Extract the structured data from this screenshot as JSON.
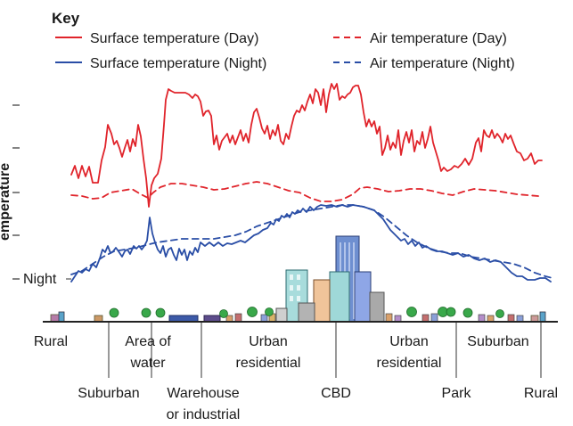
{
  "key": {
    "title": "Key",
    "items": [
      {
        "label": "Surface temperature (Day)",
        "color": "#e0242b",
        "dash": "solid"
      },
      {
        "label": "Air temperature (Day)",
        "color": "#e0242b",
        "dash": "dashed"
      },
      {
        "label": "Surface temperature (Night)",
        "color": "#2a4ea6",
        "dash": "solid"
      },
      {
        "label": "Air temperature (Night)",
        "color": "#2a4ea6",
        "dash": "dashed"
      }
    ]
  },
  "axis": {
    "y_label_partial": "emperature",
    "night_label": "Night"
  },
  "zones_upper": [
    {
      "id": "rural",
      "lines": [
        "Rural"
      ]
    },
    {
      "id": "area-of-water",
      "lines": [
        "Area of",
        "water"
      ]
    },
    {
      "id": "urban-residential-1",
      "lines": [
        "Urban",
        "residential"
      ]
    },
    {
      "id": "urban-residential-2",
      "lines": [
        "Urban",
        "residential"
      ]
    },
    {
      "id": "suburban-right",
      "lines": [
        "Suburban"
      ]
    }
  ],
  "zones_lower": [
    {
      "id": "suburban-left",
      "lines": [
        "Suburban"
      ]
    },
    {
      "id": "warehouse",
      "lines": [
        "Warehouse",
        "or industrial"
      ]
    },
    {
      "id": "cbd",
      "lines": [
        "CBD"
      ]
    },
    {
      "id": "park",
      "lines": [
        "Park"
      ]
    },
    {
      "id": "rural-right",
      "lines": [
        "Rural"
      ]
    }
  ],
  "colors": {
    "day": "#e0242b",
    "night": "#2a4ea6",
    "ground": "#222222"
  }
}
